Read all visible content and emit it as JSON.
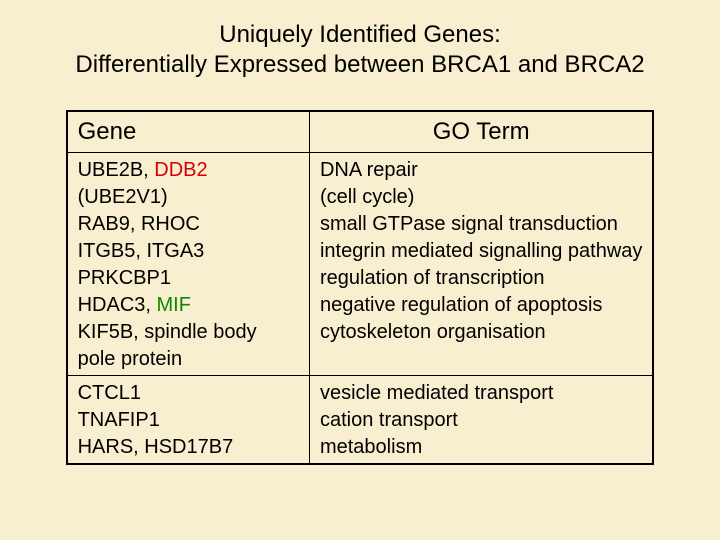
{
  "title_line1": "Uniquely Identified Genes:",
  "title_line2": "Differentially Expressed between BRCA1 and BRCA2",
  "colors": {
    "background": "#f8eed0",
    "text": "#000000",
    "border": "#000000",
    "highlight_red": "#d90000",
    "highlight_green": "#118800",
    "title_fontsize_pt": 24,
    "header_fontsize_pt": 24,
    "cell_fontsize_pt": 20,
    "font_family": "Arial"
  },
  "table": {
    "header_gene": "Gene",
    "header_go": "GO Term",
    "rows": [
      {
        "gene_lines": [
          [
            {
              "text": "UBE2B, ",
              "color": "black"
            },
            {
              "text": "DDB2",
              "color": "red"
            }
          ],
          [
            {
              "text": "(UBE2V1)",
              "color": "black"
            }
          ],
          [
            {
              "text": "RAB9, RHOC",
              "color": "black"
            }
          ],
          [
            {
              "text": "ITGB5, ITGA3",
              "color": "black"
            }
          ],
          [
            {
              "text": "PRKCBP1",
              "color": "black"
            }
          ],
          [
            {
              "text": "HDAC3, ",
              "color": "black"
            },
            {
              "text": "MIF",
              "color": "green"
            }
          ],
          [
            {
              "text": "KIF5B, spindle body",
              "color": "black"
            }
          ],
          [
            {
              "text": "pole protein",
              "color": "black"
            }
          ]
        ],
        "go_lines": [
          "DNA repair",
          "(cell cycle)",
          "small GTPase signal transduction",
          "integrin mediated signalling pathway",
          "regulation of transcription",
          "negative regulation of apoptosis",
          "cytoskeleton organisation"
        ]
      },
      {
        "gene_lines": [
          [
            {
              "text": "CTCL1",
              "color": "black"
            }
          ],
          [
            {
              "text": "TNAFIP1",
              "color": "black"
            }
          ],
          [
            {
              "text": "HARS, HSD17B7",
              "color": "black"
            }
          ]
        ],
        "go_lines": [
          "vesicle mediated transport",
          "cation transport",
          "metabolism"
        ]
      }
    ]
  }
}
